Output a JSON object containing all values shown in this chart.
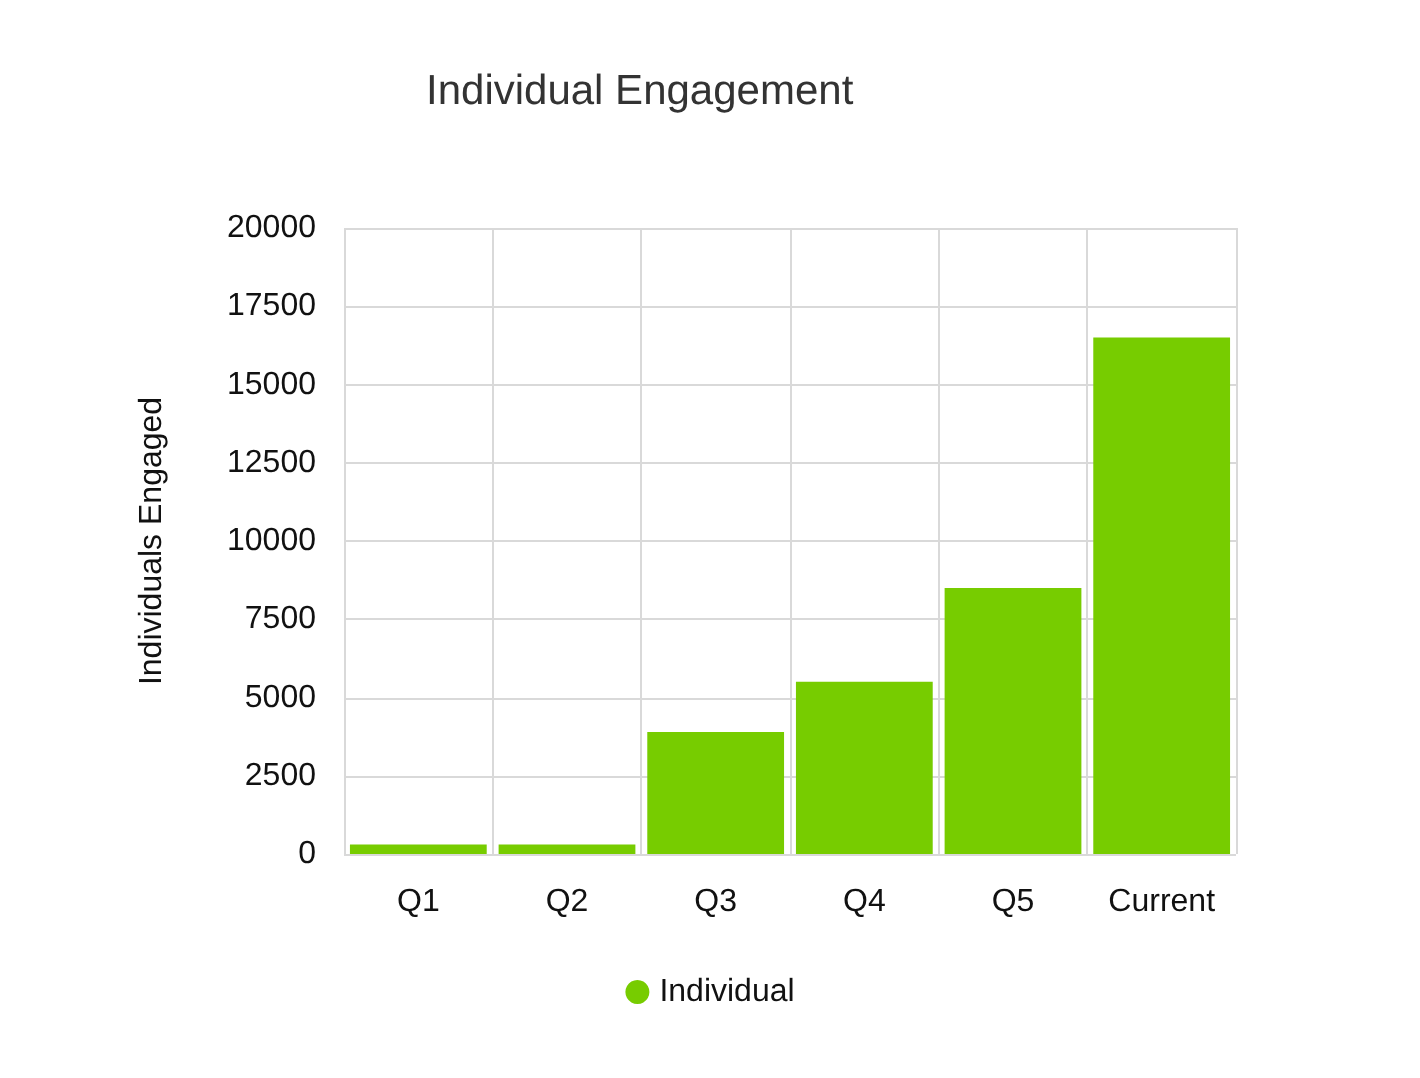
{
  "chart_data": {
    "type": "bar",
    "title": "Individual Engagement",
    "ylabel": "Individuals Engaged",
    "categories": [
      "Q1",
      "Q2",
      "Q3",
      "Q4",
      "Q5",
      "Current"
    ],
    "series": [
      {
        "name": "Individual",
        "color": "#77cc00",
        "values": [
          300,
          300,
          3900,
          5500,
          8500,
          16500
        ]
      }
    ],
    "ylim": [
      0,
      20000
    ],
    "yticks": [
      0,
      2500,
      5000,
      7500,
      10000,
      12500,
      15000,
      17500,
      20000
    ],
    "grid": true,
    "legend": "bottom"
  }
}
